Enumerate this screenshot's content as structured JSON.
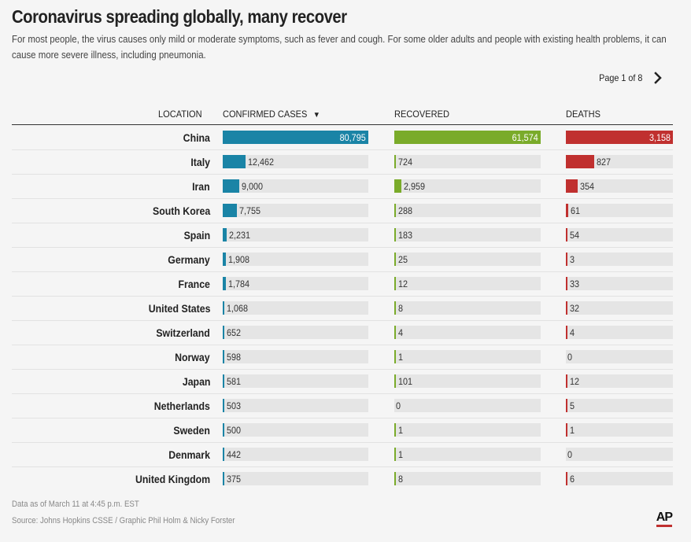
{
  "header": {
    "title": "Coronavirus spreading globally, many recover",
    "subtitle": "For most people, the virus causes only mild or moderate symptoms, such as fever and cough. For some older adults and people with existing health problems, it can cause more severe illness, including pneumonia."
  },
  "pager": {
    "label": "Page 1 of 8",
    "next_icon": "chevron-right-icon"
  },
  "columns": {
    "location": "LOCATION",
    "confirmed": "CONFIRMED CASES",
    "recovered": "RECOVERED",
    "deaths": "DEATHS",
    "sort_icon": "▼"
  },
  "colors": {
    "confirmed": "#1a84a6",
    "recovered": "#7aab2a",
    "deaths": "#c0302f",
    "track": "#e5e5e5"
  },
  "chart_data": {
    "type": "bar",
    "categories": [
      "China",
      "Italy",
      "Iran",
      "South Korea",
      "Spain",
      "Germany",
      "France",
      "United States",
      "Switzerland",
      "Norway",
      "Japan",
      "Netherlands",
      "Sweden",
      "Denmark",
      "United Kingdom"
    ],
    "series": [
      {
        "name": "CONFIRMED CASES",
        "values": [
          80795,
          12462,
          9000,
          7755,
          2231,
          1908,
          1784,
          1068,
          652,
          598,
          581,
          503,
          500,
          442,
          375
        ],
        "labels": [
          "80,795",
          "12,462",
          "9,000",
          "7,755",
          "2,231",
          "1,908",
          "1,784",
          "1,068",
          "652",
          "598",
          "581",
          "503",
          "500",
          "442",
          "375"
        ]
      },
      {
        "name": "RECOVERED",
        "values": [
          61574,
          724,
          2959,
          288,
          183,
          25,
          12,
          8,
          4,
          1,
          101,
          0,
          1,
          1,
          8
        ],
        "labels": [
          "61,574",
          "724",
          "2,959",
          "288",
          "183",
          "25",
          "12",
          "8",
          "4",
          "1",
          "101",
          "0",
          "1",
          "1",
          "8"
        ]
      },
      {
        "name": "DEATHS",
        "values": [
          3158,
          827,
          354,
          61,
          54,
          3,
          33,
          32,
          4,
          0,
          12,
          5,
          1,
          0,
          6
        ],
        "labels": [
          "3,158",
          "827",
          "354",
          "61",
          "54",
          "3",
          "33",
          "32",
          "4",
          "0",
          "12",
          "5",
          "1",
          "0",
          "6"
        ]
      }
    ]
  },
  "footer": {
    "note": "Data as of March 11 at 4:45 p.m. EST",
    "source": "Source: Johns Hopkins CSSE / Graphic Phil Holm & Nicky Forster",
    "logo": "AP"
  }
}
